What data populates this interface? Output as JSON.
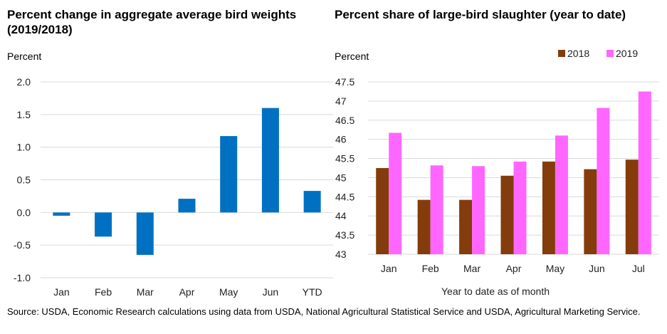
{
  "left": {
    "title": "Percent change in aggregate average bird weights (2019/2018)",
    "unit_label": "Percent"
  },
  "right": {
    "title": "Percent share of large-bird slaughter (year to date)",
    "unit_label": "Percent",
    "xlabel": "Year to date as of month"
  },
  "source": "Source: USDA, Economic Research calculations using data from USDA, National Agricultural Statistical Service and USDA, Agricultural Marketing Service.",
  "colors": {
    "blue": "#0071c2",
    "brown": "#843c0c",
    "pink": "#ff66ff",
    "grid": "#d9d9d9"
  },
  "chart_data": [
    {
      "type": "bar",
      "title": "Percent change in aggregate average bird weights (2019/2018)",
      "ylabel": "Percent",
      "xlabel": "",
      "categories": [
        "Jan",
        "Feb",
        "Mar",
        "Apr",
        "May",
        "Jun",
        "YTD"
      ],
      "values": [
        -0.05,
        -0.37,
        -0.65,
        0.21,
        1.17,
        1.6,
        0.33
      ],
      "ylim": [
        -1.0,
        2.0
      ],
      "yticks": [
        "2.0",
        "1.5",
        "1.0",
        "0.5",
        "0.0",
        "-0.5",
        "-1.0"
      ],
      "grid": true
    },
    {
      "type": "bar",
      "title": "Percent share of large-bird slaughter (year to date)",
      "ylabel": "Percent",
      "xlabel": "Year to date as of month",
      "categories": [
        "Jan",
        "Feb",
        "Mar",
        "Apr",
        "May",
        "Jun",
        "Jul"
      ],
      "series": [
        {
          "name": "2018",
          "values": [
            45.25,
            44.42,
            44.42,
            45.05,
            45.42,
            45.22,
            45.47
          ]
        },
        {
          "name": "2019",
          "values": [
            46.17,
            45.32,
            45.3,
            45.42,
            46.1,
            46.82,
            47.25
          ]
        }
      ],
      "ylim": [
        43,
        47.5
      ],
      "yticks": [
        "47.5",
        "47",
        "46.5",
        "46",
        "45.5",
        "45",
        "44.5",
        "44",
        "43.5",
        "43"
      ],
      "legend": "top-right",
      "grid": true
    }
  ]
}
